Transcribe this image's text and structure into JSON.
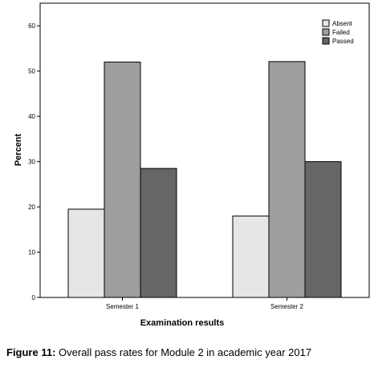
{
  "chart_data": {
    "type": "bar",
    "categories": [
      "Semester 1",
      "Semester 2"
    ],
    "series": [
      {
        "name": "Absent",
        "values": [
          19.5,
          18
        ],
        "color": "#e6e6e6"
      },
      {
        "name": "Failed",
        "values": [
          52,
          52.1
        ],
        "color": "#9e9e9e"
      },
      {
        "name": "Passed",
        "values": [
          28.5,
          30
        ],
        "color": "#666666"
      }
    ],
    "xlabel": "Examination results",
    "ylabel": "Percent",
    "ylim": [
      0,
      65
    ],
    "yticks": [
      0,
      10,
      20,
      30,
      40,
      50,
      60
    ],
    "grid": false,
    "legend": "top-right"
  },
  "caption": {
    "label": "Figure 11:",
    "text": " Overall pass rates for Module 2 in academic year 2017"
  }
}
